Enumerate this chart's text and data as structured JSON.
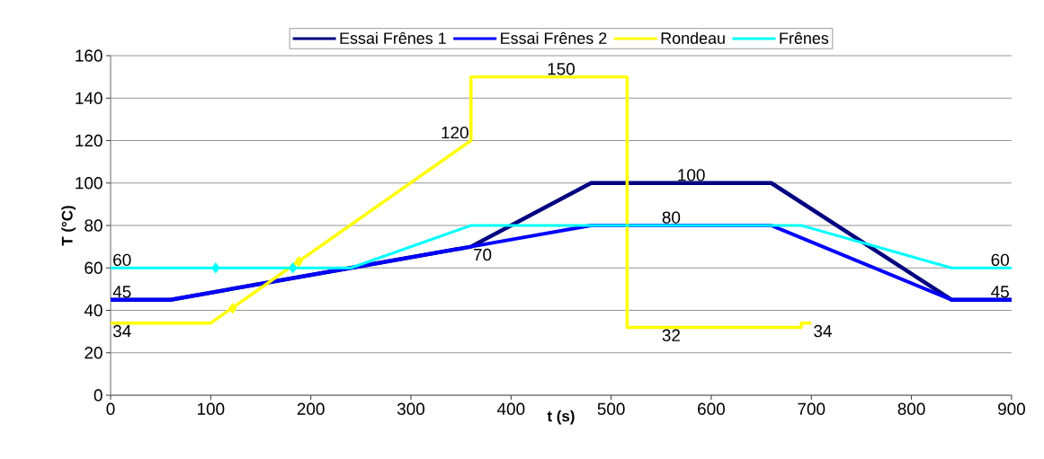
{
  "chart_data": {
    "type": "line",
    "xlabel": "t (s)",
    "ylabel": "T (°C)",
    "xlim": [
      0,
      900
    ],
    "ylim": [
      0,
      160
    ],
    "xticks": [
      0,
      100,
      200,
      300,
      400,
      500,
      600,
      700,
      800,
      900
    ],
    "yticks": [
      0,
      20,
      40,
      60,
      80,
      100,
      120,
      140,
      160
    ],
    "grid": "y",
    "legend": "top",
    "line_style": "solid",
    "marker": "none",
    "series": [
      {
        "name": "Essai Frênes 1",
        "color": "#000080",
        "x": [
          0,
          60,
          240,
          360,
          480,
          660,
          840,
          900
        ],
        "values": [
          45,
          45,
          60,
          70,
          100,
          100,
          45,
          45
        ]
      },
      {
        "name": "Essai Frênes 2",
        "color": "#0000ff",
        "x": [
          0,
          60,
          240,
          360,
          480,
          660,
          840,
          900
        ],
        "values": [
          45,
          45,
          60,
          70,
          80,
          80,
          45,
          45
        ]
      },
      {
        "name": "Rondeau",
        "color": "#ffff00",
        "x": [
          0,
          100,
          360,
          360,
          516,
          516,
          690,
          690,
          700
        ],
        "values": [
          34,
          34,
          120,
          150,
          150,
          32,
          32,
          34,
          34
        ]
      },
      {
        "name": "Frênes",
        "color": "#00ffff",
        "x": [
          0,
          240,
          360,
          690,
          840,
          900
        ],
        "values": [
          60,
          60,
          80,
          80,
          60,
          60
        ]
      },
      {
        "type": "scatter",
        "color": "#00ffff",
        "marker": "diamond",
        "x": [
          105,
          182
        ],
        "values": [
          60,
          60
        ]
      },
      {
        "type": "scatter",
        "color": "#ffff00",
        "marker": "diamond",
        "x": [
          122,
          188
        ],
        "values": [
          41,
          63
        ]
      }
    ],
    "annotations": [
      {
        "text": "60",
        "x": 0,
        "y": 60
      },
      {
        "text": "45",
        "x": 0,
        "y": 45
      },
      {
        "text": "34",
        "x": 0,
        "y": 34
      },
      {
        "text": "120",
        "x": 360,
        "y": 120
      },
      {
        "text": "150",
        "x": 450,
        "y": 150
      },
      {
        "text": "100",
        "x": 580,
        "y": 100
      },
      {
        "text": "80",
        "x": 560,
        "y": 80
      },
      {
        "text": "70",
        "x": 360,
        "y": 70
      },
      {
        "text": "32",
        "x": 560,
        "y": 32
      },
      {
        "text": "34",
        "x": 700,
        "y": 34
      },
      {
        "text": "60",
        "x": 900,
        "y": 60
      },
      {
        "text": "45",
        "x": 900,
        "y": 45
      }
    ]
  }
}
